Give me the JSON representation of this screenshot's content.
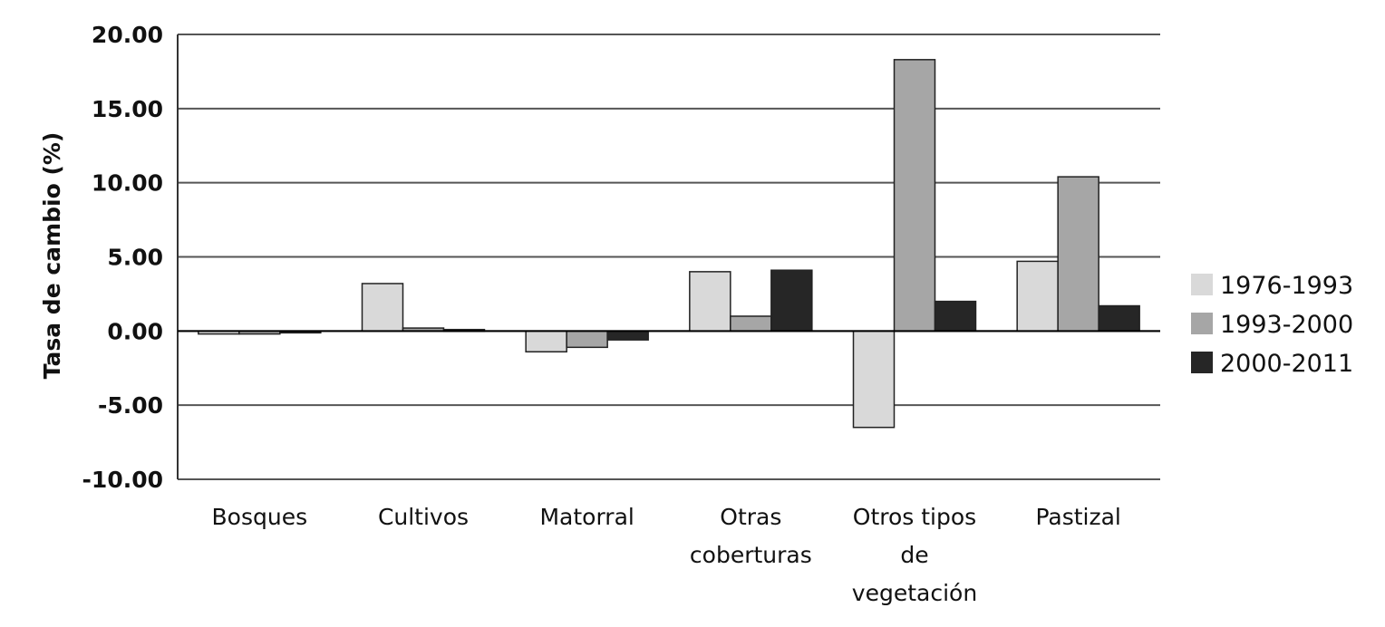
{
  "chart_data": {
    "type": "bar",
    "ylabel": "Tasa de cambio (%)",
    "xlabel": "",
    "ylim": [
      -10,
      20
    ],
    "yticks": [
      20,
      15,
      10,
      5,
      0,
      -5,
      -10
    ],
    "ytick_labels": [
      "20.00",
      "15.00",
      "10.00",
      "5.00",
      "0.00",
      "-5.00",
      "-10.00"
    ],
    "grid": true,
    "legend_position": "right",
    "categories": [
      [
        "Bosques"
      ],
      [
        "Cultivos"
      ],
      [
        "Matorral"
      ],
      [
        "Otras",
        "coberturas"
      ],
      [
        "Otros tipos",
        "de",
        "vegetación"
      ],
      [
        "Pastizal"
      ]
    ],
    "series": [
      {
        "name": "1976-1993",
        "color": "#d9d9d9",
        "values": [
          -0.2,
          3.2,
          -1.4,
          4.0,
          -6.5,
          4.7
        ]
      },
      {
        "name": "1993-2000",
        "color": "#a6a6a6",
        "values": [
          -0.2,
          0.2,
          -1.1,
          1.0,
          18.3,
          10.4
        ]
      },
      {
        "name": "2000-2011",
        "color": "#262626",
        "values": [
          -0.05,
          0.1,
          -0.6,
          4.1,
          2.0,
          1.7
        ]
      }
    ]
  }
}
